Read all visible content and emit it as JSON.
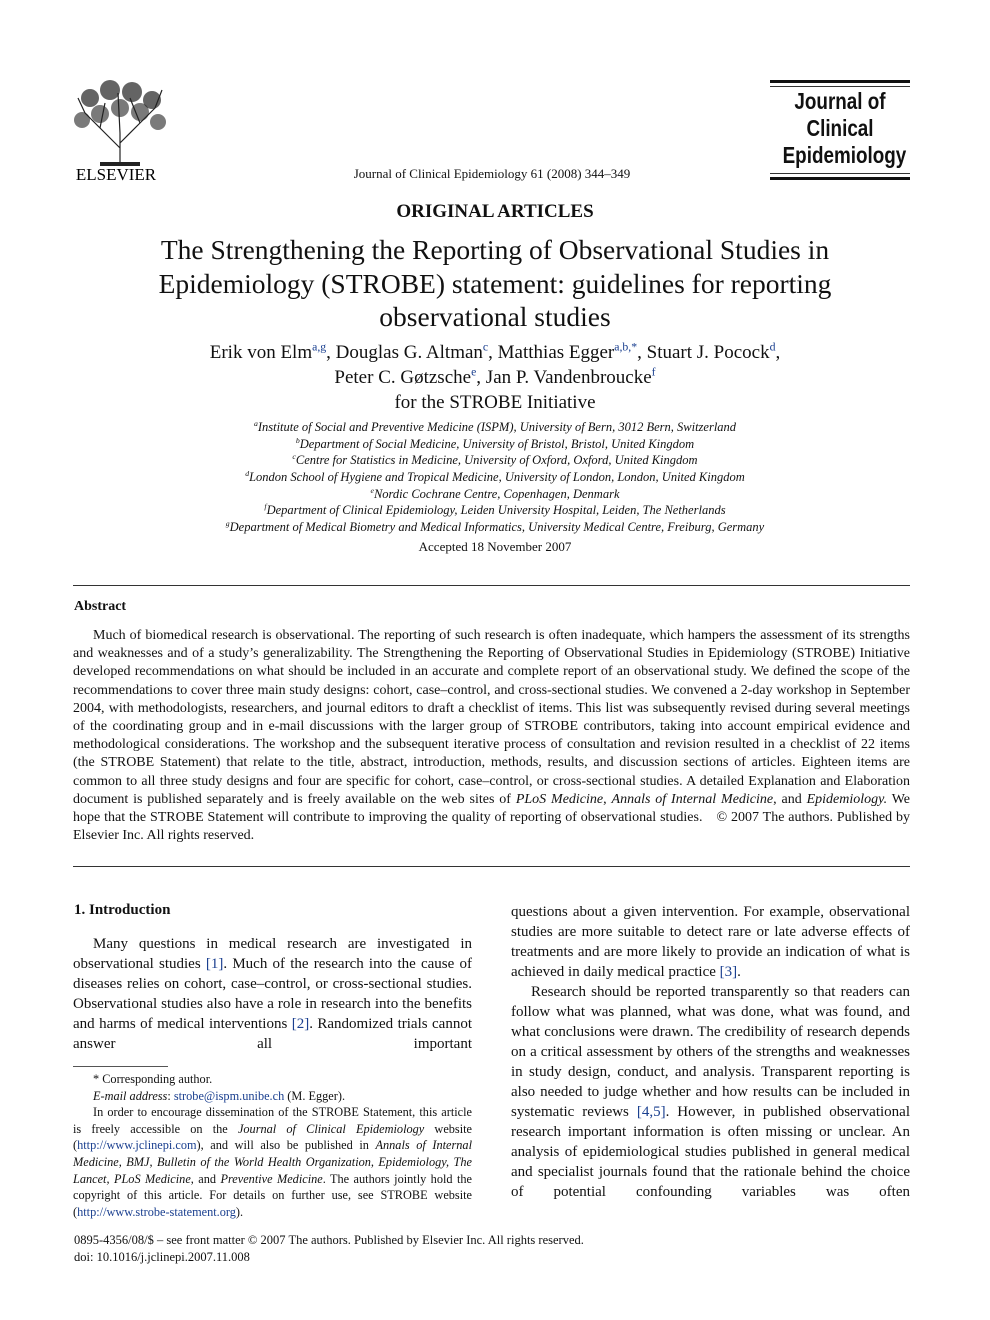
{
  "header": {
    "publisher": "ELSEVIER",
    "citation": "Journal of Clinical Epidemiology 61 (2008) 344–349",
    "journal_logo": [
      "Journal of",
      "Clinical",
      "Epidemiology"
    ]
  },
  "article": {
    "section": "ORIGINAL ARTICLES",
    "title": "The Strengthening the Reporting of Observational Studies in Epidemiology (STROBE) statement: guidelines for reporting observational studies",
    "authors": [
      {
        "name": "Erik von Elm",
        "sup": "a,g",
        "punct": ","
      },
      {
        "name": "Douglas G. Altman",
        "sup": "c",
        "punct": ","
      },
      {
        "name": "Matthias Egger",
        "sup": "a,b,*",
        "punct": ","
      },
      {
        "name": "Stuart J. Pocock",
        "sup": "d",
        "punct": ","
      },
      {
        "name": "Peter C. Gøtzsche",
        "sup": "e",
        "punct": ","
      },
      {
        "name": "Jan P. Vandenbroucke",
        "sup": "f"
      }
    ],
    "group": "for the STROBE Initiative",
    "affiliations": [
      {
        "mark": "a",
        "text": "Institute of Social and Preventive Medicine (ISPM), University of Bern, 3012 Bern, Switzerland"
      },
      {
        "mark": "b",
        "text": "Department of Social Medicine, University of Bristol, Bristol, United Kingdom"
      },
      {
        "mark": "c",
        "text": "Centre for Statistics in Medicine, University of Oxford, Oxford, United Kingdom"
      },
      {
        "mark": "d",
        "text": "London School of Hygiene and Tropical Medicine, University of London, London, United Kingdom"
      },
      {
        "mark": "e",
        "text": "Nordic Cochrane Centre, Copenhagen, Denmark"
      },
      {
        "mark": "f",
        "text": "Department of Clinical Epidemiology, Leiden University Hospital, Leiden, The Netherlands"
      },
      {
        "mark": "g",
        "text": "Department of Medical Biometry and Medical Informatics, University Medical Centre, Freiburg, Germany"
      }
    ],
    "accepted": "Accepted 18 November 2007"
  },
  "abstract": {
    "heading": "Abstract",
    "text": [
      "Much of biomedical research is observational. The reporting of such research is often inadequate, which hampers the assessment of its strengths and weaknesses and of a study’s generalizability. The Strengthening the Reporting of Observational Studies in Epidemiology (STROBE) Initiative developed recommendations on what should be included in an accurate and complete report of an observational study. We defined the scope of the recommendations to cover three main study designs: cohort, case–control, and cross-sectional studies. We convened a 2-day workshop in September 2004, with methodologists, researchers, and journal editors to draft a checklist of items. This list was subsequently revised during several meetings of the coordinating group and in e-mail discussions with the larger group of STROBE contributors, taking into account empirical evidence and methodological considerations. The workshop and the subsequent iterative process of consultation and revision resulted in a checklist of 22 items (the STROBE Statement) that relate to the title, abstract, introduction, methods, results, and discussion sections of articles. Eighteen items are common to all three study designs and four are specific for cohort, case–control, or cross-sectional studies. A detailed Explanation and Elaboration document is published separately and is freely available on the web sites of ",
      "PLoS Medicine",
      ", ",
      "Annals of Internal Medicine",
      ", and ",
      "Epidemiology.",
      " We hope that the STROBE Statement will contribute to improving the quality of reporting of observational studies.",
      "© 2007 The authors. Published by Elsevier Inc. All rights reserved."
    ]
  },
  "body": {
    "heading": "1. Introduction",
    "left_column": [
      "Many questions in medical research are investigated in observational studies ",
      "[1]",
      ". Much of the research into the cause of diseases relies on cohort, case–control, or cross-sectional studies. Observational studies also have a role in research into the benefits and harms of medical interventions ",
      "[2]",
      ". Randomized trials cannot answer all important"
    ],
    "right_column_p1": [
      "questions about a given intervention. For example, observational studies are more suitable to detect rare or late adverse effects of treatments and are more likely to provide an indication of what is achieved in daily medical practice ",
      "[3]",
      "."
    ],
    "right_column_p2": [
      "Research should be reported transparently so that readers can follow what was planned, what was done, what was found, and what conclusions were drawn. The credibility of research depends on a critical assessment by others of the strengths and weaknesses in study design, conduct, and analysis. Transparent reporting is also needed to judge whether and how results can be included in systematic reviews ",
      "[4,5]",
      ". However, in published observational research important information is often missing or unclear. An analysis of epidemiological studies published in general medical and specialist journals found that the rationale behind the choice of potential confounding variables was often"
    ]
  },
  "footnotes": {
    "corresponding": "* Corresponding author.",
    "email": [
      "E-mail address",
      ": ",
      "strobe@ispm.unibe.ch",
      " (M. Egger)."
    ],
    "note": [
      "In order to encourage dissemination of the STROBE Statement, this article is freely accessible on the ",
      "Journal of Clinical Epidemiology",
      " website (",
      "http://www.jclinepi.com",
      "), and will also be published in ",
      "Annals of Internal Medicine, BMJ, Bulletin of the World Health Organization, Epidemiology, The Lancet, PLoS Medicine",
      ", and ",
      "Preventive Medicine",
      ". The authors jointly hold the copyright of this article. For details on further use, see STROBE website (",
      "http://www.strobe-statement.org",
      ")."
    ]
  },
  "footer": {
    "issn": "0895-4356/08/$ – see front matter © 2007 The authors. Published by Elsevier Inc. All rights reserved.",
    "doi": "doi: 10.1016/j.jclinepi.2007.11.008"
  }
}
